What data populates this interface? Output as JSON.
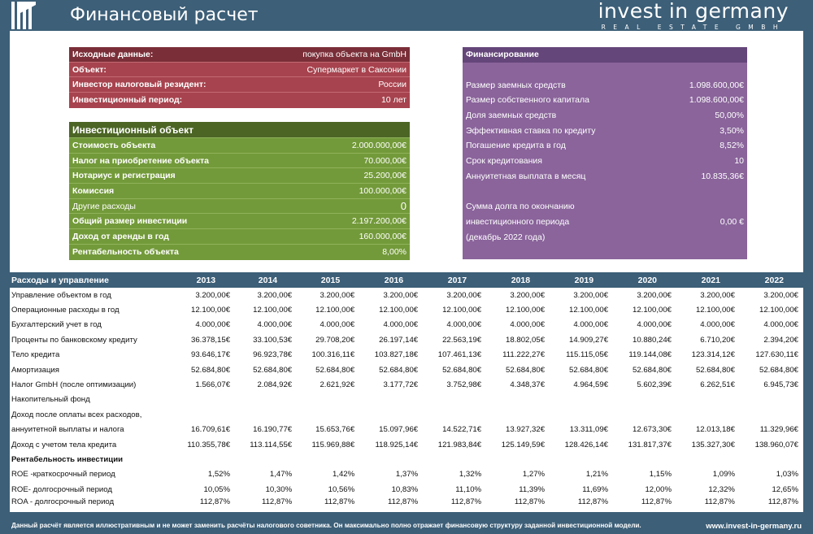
{
  "header": {
    "title": "Финансовый расчет",
    "brand_name": "invest in germany",
    "brand_sub": "REAL ESTATE GMBH"
  },
  "source_panel": {
    "rows": [
      {
        "label": "Исходные данные:",
        "value": "покупка объекта на GmbH"
      },
      {
        "label": "Объект:",
        "value": "Супермаркет в Саксонии"
      },
      {
        "label": "Инвестор налоговый резидент:",
        "value": "России"
      },
      {
        "label": "Инвестиционный период:",
        "value": "10 лет"
      }
    ]
  },
  "object_panel": {
    "title": "Инвестиционный объект",
    "rows": [
      {
        "label": "Стоимость объекта",
        "value": "2.000.000,00€"
      },
      {
        "label": "Налог на приобретение объекта",
        "value": "70.000,00€"
      },
      {
        "label": "Нотариус и регистрация",
        "value": "25.200,00€"
      },
      {
        "label": "Комиссия",
        "value": "100.000,00€"
      },
      {
        "label": "Другие расходы",
        "value": "0"
      },
      {
        "label": "Общий размер инвестиции",
        "value": "2.197.200,00€"
      },
      {
        "label": "Доход от аренды в год",
        "value": "160.000,00€"
      },
      {
        "label": "Рентабельность объекта",
        "value": "8,00%"
      }
    ]
  },
  "financing_panel": {
    "title": "Финансирование",
    "rows": [
      {
        "label": "Размер заемных средств",
        "value": "1.098.600,00€"
      },
      {
        "label": "Размер собственного капитала",
        "value": "1.098.600,00€"
      },
      {
        "label": "Доля заемных средств",
        "value": "50,00%"
      },
      {
        "label": "Эффективная ставка по кредиту",
        "value": "3,50%"
      },
      {
        "label": "Погашение кредита в год",
        "value": "8,52%"
      },
      {
        "label": "Срок кредитования",
        "value": "10"
      },
      {
        "label": "Аннуитетная выплата в месяц",
        "value": "10.835,36€"
      }
    ],
    "debt_label_1": "Сумма долга по окончанию",
    "debt_label_2": "инвестиционного периода",
    "debt_value": "0,00 €",
    "debt_label_3": "(декабрь 2022 года)"
  },
  "table": {
    "title": "Расходы и управление",
    "years": [
      "2013",
      "2014",
      "2015",
      "2016",
      "2017",
      "2018",
      "2019",
      "2020",
      "2021",
      "2022"
    ],
    "rows": [
      {
        "label": "Управление объектом в год",
        "values": [
          "3.200,00€",
          "3.200,00€",
          "3.200,00€",
          "3.200,00€",
          "3.200,00€",
          "3.200,00€",
          "3.200,00€",
          "3.200,00€",
          "3.200,00€",
          "3.200,00€"
        ]
      },
      {
        "label": "Операционные расходы в год",
        "values": [
          "12.100,00€",
          "12.100,00€",
          "12.100,00€",
          "12.100,00€",
          "12.100,00€",
          "12.100,00€",
          "12.100,00€",
          "12.100,00€",
          "12.100,00€",
          "12.100,00€"
        ]
      },
      {
        "label": "Бухгалтерский учет в год",
        "values": [
          "4.000,00€",
          "4.000,00€",
          "4.000,00€",
          "4.000,00€",
          "4.000,00€",
          "4.000,00€",
          "4.000,00€",
          "4.000,00€",
          "4.000,00€",
          "4.000,00€"
        ]
      },
      {
        "label": "Проценты по банковскому кредиту",
        "values": [
          "36.378,15€",
          "33.100,53€",
          "29.708,20€",
          "26.197,14€",
          "22.563,19€",
          "18.802,05€",
          "14.909,27€",
          "10.880,24€",
          "6.710,20€",
          "2.394,20€"
        ]
      },
      {
        "label": "Тело кредита",
        "values": [
          "93.646,17€",
          "96.923,78€",
          "100.316,11€",
          "103.827,18€",
          "107.461,13€",
          "111.222,27€",
          "115.115,05€",
          "119.144,08€",
          "123.314,12€",
          "127.630,11€"
        ]
      },
      {
        "label": "Амортизация",
        "values": [
          "52.684,80€",
          "52.684,80€",
          "52.684,80€",
          "52.684,80€",
          "52.684,80€",
          "52.684,80€",
          "52.684,80€",
          "52.684,80€",
          "52.684,80€",
          "52.684,80€"
        ]
      },
      {
        "label": "Налог GmbH (после оптимизации)",
        "values": [
          "1.566,07€",
          "2.084,92€",
          "2.621,92€",
          "3.177,72€",
          "3.752,98€",
          "4.348,37€",
          "4.964,59€",
          "5.602,39€",
          "6.262,51€",
          "6.945,73€"
        ]
      },
      {
        "label": "Накопительный фонд",
        "values": [
          "",
          "",
          "",
          "",
          "",
          "",
          "",
          "",
          "",
          ""
        ]
      },
      {
        "label": "Доход после оплаты всех расходов,",
        "values": [
          "",
          "",
          "",
          "",
          "",
          "",
          "",
          "",
          "",
          ""
        ]
      },
      {
        "label": "аннуитетной выплаты и налога",
        "values": [
          "16.709,61€",
          "16.190,77€",
          "15.653,76€",
          "15.097,96€",
          "14.522,71€",
          "13.927,32€",
          "13.311,09€",
          "12.673,30€",
          "12.013,18€",
          "11.329,96€"
        ]
      },
      {
        "label": "Доход с учетом тела кредита",
        "values": [
          "110.355,78€",
          "113.114,55€",
          "115.969,88€",
          "118.925,14€",
          "121.983,84€",
          "125.149,59€",
          "128.426,14€",
          "131.817,37€",
          "135.327,30€",
          "138.960,07€"
        ]
      },
      {
        "label": "Рентабельность инвестиции",
        "bold": true,
        "values": [
          "",
          "",
          "",
          "",
          "",
          "",
          "",
          "",
          "",
          ""
        ]
      },
      {
        "label": "ROE -краткосрочный период",
        "values": [
          "1,52%",
          "1,47%",
          "1,42%",
          "1,37%",
          "1,32%",
          "1,27%",
          "1,21%",
          "1,15%",
          "1,09%",
          "1,03%"
        ]
      },
      {
        "label": "ROE- долгосрочный период",
        "values": [
          "10,05%",
          "10,30%",
          "10,56%",
          "10,83%",
          "11,10%",
          "11,39%",
          "11,69%",
          "12,00%",
          "12,32%",
          "12,65%"
        ]
      },
      {
        "label": "ROA - долгосрочный период",
        "tight": true,
        "values": [
          "112,87%",
          "112,87%",
          "112,87%",
          "112,87%",
          "112,87%",
          "112,87%",
          "112,87%",
          "112,87%",
          "112,87%",
          "112,87%"
        ]
      }
    ]
  },
  "footer": {
    "note": "Данный расчёт является иллюстративным и не может заменить расчёты налогового советника. Он максимально полно отражает финансовую структуру заданной инвестиционной модели.",
    "site": "www.invest-in-germany.ru"
  }
}
